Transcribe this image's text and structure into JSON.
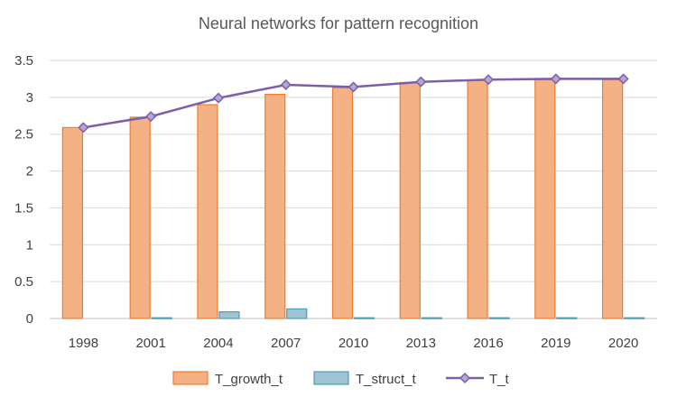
{
  "chart_data": {
    "type": "bar",
    "title": "Neural networks for pattern recognition",
    "categories": [
      "1998",
      "2001",
      "2004",
      "2007",
      "2010",
      "2013",
      "2016",
      "2019",
      "2020"
    ],
    "series": [
      {
        "name": "T_growth_t",
        "type": "bar",
        "color": "#F4B183",
        "values": [
          2.59,
          2.73,
          2.9,
          3.04,
          3.13,
          3.2,
          3.23,
          3.24,
          3.24
        ]
      },
      {
        "name": "T_struct_t",
        "type": "bar",
        "color": "#9DC3D4",
        "values": [
          0.0,
          0.01,
          0.09,
          0.13,
          0.01,
          0.01,
          0.01,
          0.01,
          0.01
        ]
      },
      {
        "name": "T_t",
        "type": "line",
        "color": "#7B5FA8",
        "values": [
          2.59,
          2.74,
          2.99,
          3.17,
          3.14,
          3.21,
          3.24,
          3.25,
          3.25
        ]
      }
    ],
    "ylim": [
      0,
      3.5
    ],
    "yticks": [
      "0",
      "0.5",
      "1",
      "1.5",
      "2",
      "2.5",
      "3",
      "3.5"
    ],
    "xlabel": "",
    "ylabel": "",
    "grid": true,
    "legend": "bottom"
  }
}
